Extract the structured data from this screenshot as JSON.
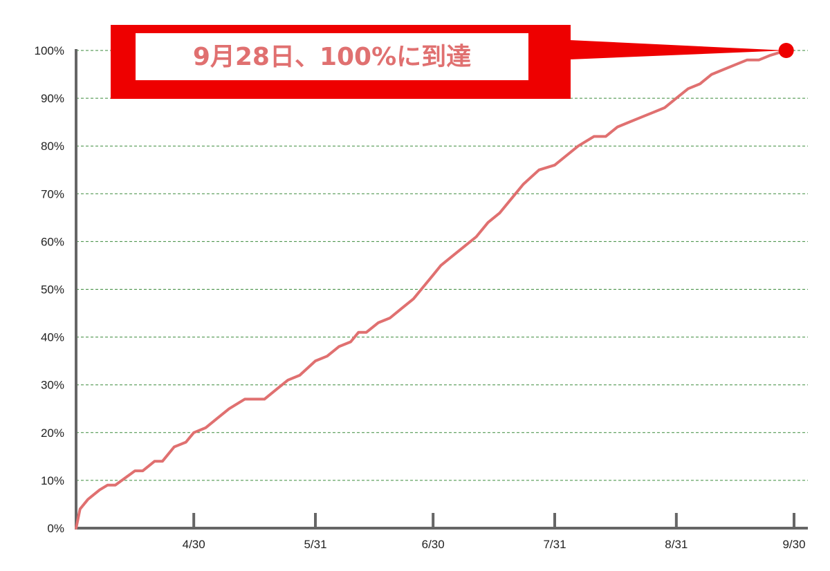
{
  "chart_data": {
    "type": "line",
    "title": "",
    "xlabel": "",
    "ylabel": "",
    "x_tick_labels": [
      "4/30",
      "5/31",
      "6/30",
      "7/31",
      "8/31",
      "9/30"
    ],
    "y_tick_labels": [
      "0%",
      "10%",
      "20%",
      "30%",
      "40%",
      "50%",
      "60%",
      "70%",
      "80%",
      "90%",
      "100%"
    ],
    "ylim": [
      0,
      100
    ],
    "y_unit": "%",
    "x_axis_note": "dates, month/day; left edge of axis is 3/31",
    "grid": "horizontal dashed",
    "series": [
      {
        "values": [
          [
            "3/31",
            0
          ],
          [
            "4/1",
            4
          ],
          [
            "4/3",
            6
          ],
          [
            "4/6",
            8
          ],
          [
            "4/8",
            9
          ],
          [
            "4/10",
            9
          ],
          [
            "4/15",
            12
          ],
          [
            "4/17",
            12
          ],
          [
            "4/20",
            14
          ],
          [
            "4/22",
            14
          ],
          [
            "4/25",
            17
          ],
          [
            "4/28",
            18
          ],
          [
            "4/30",
            20
          ],
          [
            "5/3",
            21
          ],
          [
            "5/6",
            23
          ],
          [
            "5/9",
            25
          ],
          [
            "5/11",
            26
          ],
          [
            "5/13",
            27
          ],
          [
            "5/18",
            27
          ],
          [
            "5/21",
            29
          ],
          [
            "5/24",
            31
          ],
          [
            "5/27",
            32
          ],
          [
            "5/31",
            35
          ],
          [
            "6/3",
            36
          ],
          [
            "6/6",
            38
          ],
          [
            "6/9",
            39
          ],
          [
            "6/11",
            41
          ],
          [
            "6/13",
            41
          ],
          [
            "6/16",
            43
          ],
          [
            "6/19",
            44
          ],
          [
            "6/22",
            46
          ],
          [
            "6/25",
            48
          ],
          [
            "6/28",
            51
          ],
          [
            "6/30",
            53
          ],
          [
            "7/2",
            55
          ],
          [
            "7/5",
            57
          ],
          [
            "7/8",
            59
          ],
          [
            "7/11",
            61
          ],
          [
            "7/14",
            64
          ],
          [
            "7/17",
            66
          ],
          [
            "7/20",
            69
          ],
          [
            "7/23",
            72
          ],
          [
            "7/27",
            75
          ],
          [
            "7/31",
            76
          ],
          [
            "8/3",
            78
          ],
          [
            "8/6",
            80
          ],
          [
            "8/10",
            82
          ],
          [
            "8/13",
            82
          ],
          [
            "8/16",
            84
          ],
          [
            "8/19",
            85
          ],
          [
            "8/22",
            86
          ],
          [
            "8/25",
            87
          ],
          [
            "8/28",
            88
          ],
          [
            "8/31",
            90
          ],
          [
            "9/3",
            92
          ],
          [
            "9/6",
            93
          ],
          [
            "9/9",
            95
          ],
          [
            "9/12",
            96
          ],
          [
            "9/15",
            97
          ],
          [
            "9/18",
            98
          ],
          [
            "9/21",
            98
          ],
          [
            "9/24",
            99
          ],
          [
            "9/28",
            100
          ]
        ],
        "color": "#e07070"
      }
    ],
    "annotation": {
      "text": "9月28日、100%に到達",
      "point": [
        "9/28",
        100
      ],
      "box_color": "#ee0000",
      "text_color": "#e07070",
      "marker_color": "#ee0000"
    },
    "colors": {
      "axis": "#666666",
      "grid": "#3a8a3a"
    }
  }
}
